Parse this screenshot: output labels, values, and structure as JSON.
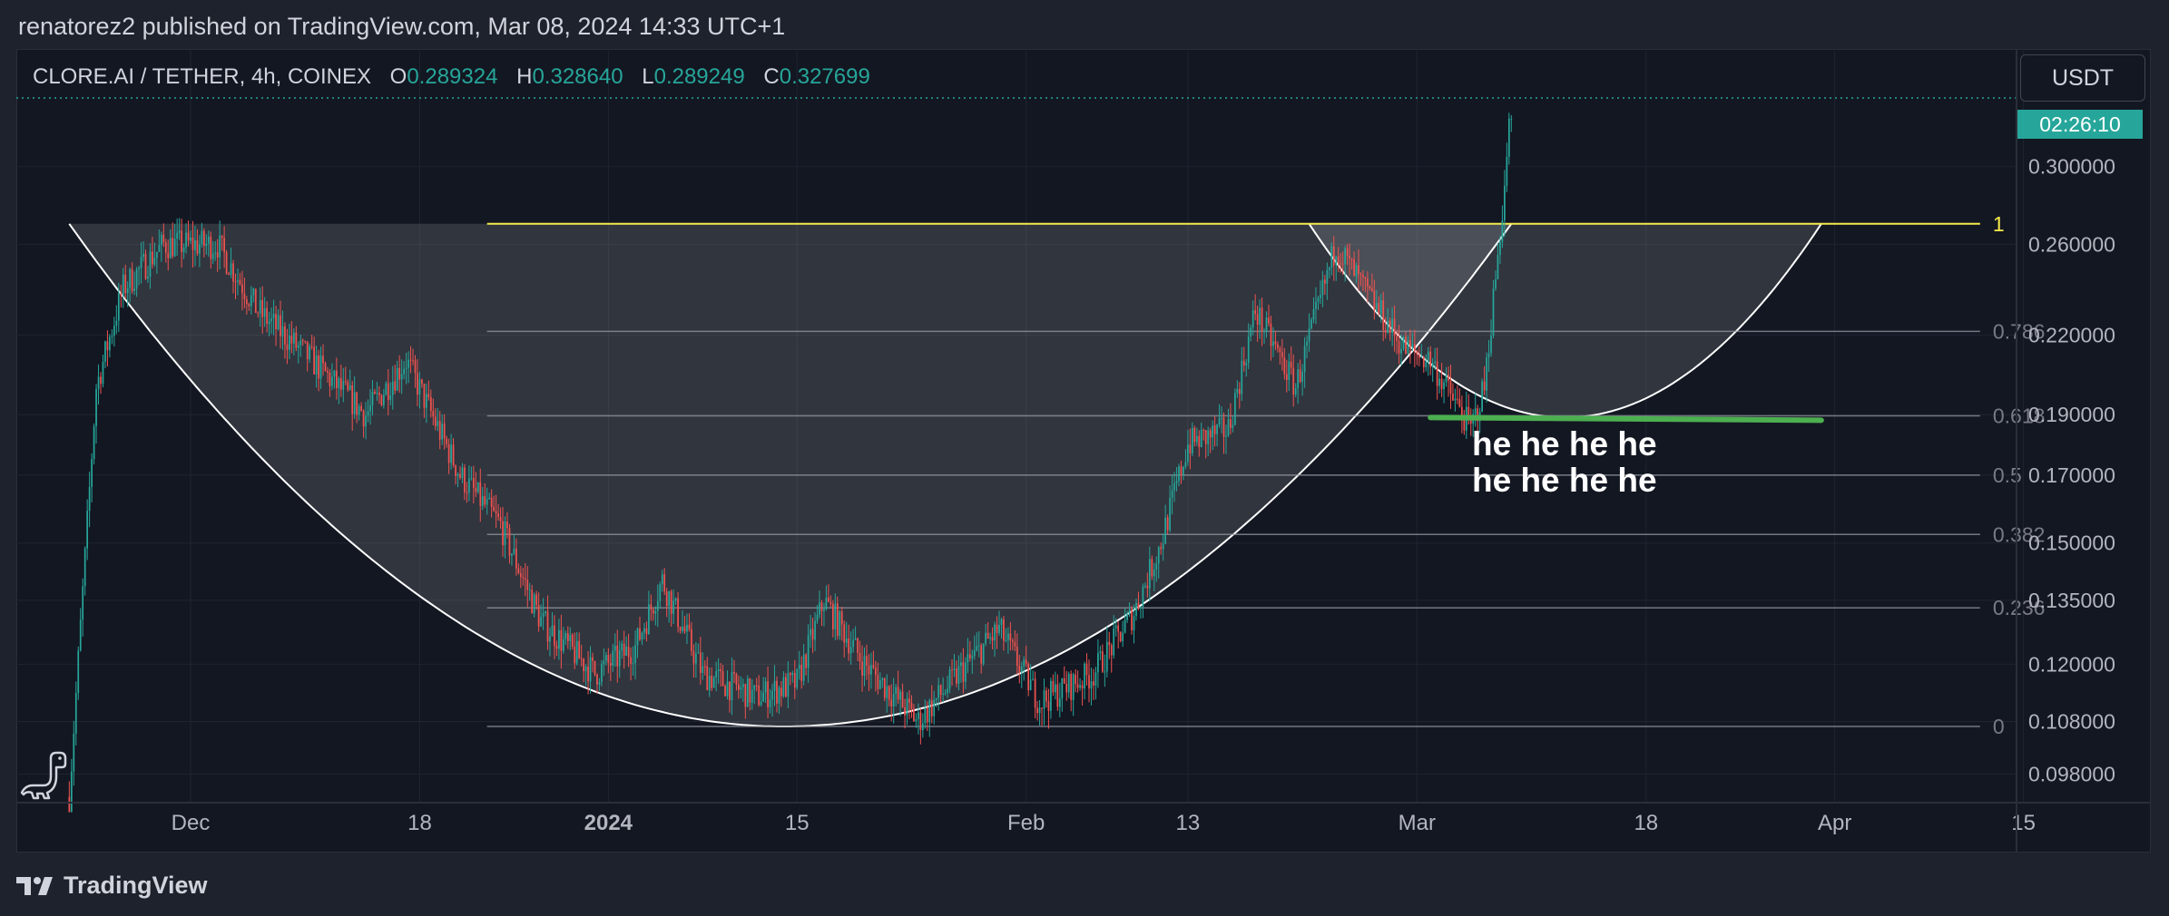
{
  "header": {
    "publish_line": "renatorez2 published on TradingView.com, Mar 08, 2024 14:33 UTC+1"
  },
  "legend": {
    "symbol": "CLORE.AI / TETHER, 4h, COINEX",
    "open_label": "O",
    "open": "0.289324",
    "high_label": "H",
    "high": "0.328640",
    "low_label": "L",
    "low": "0.289249",
    "close_label": "C",
    "close": "0.327699"
  },
  "currency": "USDT",
  "countdown": "02:26:10",
  "annotation": {
    "line1": "he he he he",
    "line2": "he he he he"
  },
  "footer": {
    "brand": "TradingView"
  },
  "colors": {
    "background": "#131722",
    "up": "#26a69a",
    "down": "#ef5350",
    "fib_level_1": "#f5ea4b",
    "support_line": "#4caf50",
    "pattern_fill": "#ffffff",
    "curve": "#ffffff"
  },
  "chart_data": {
    "type": "candlestick",
    "interval": "4h",
    "y_scale": "log",
    "ylim": [
      0.093,
      0.345
    ],
    "x_axis_labels": [
      {
        "label": "Dec",
        "date": "2023-12-01",
        "bold": false
      },
      {
        "label": "18",
        "date": "2023-12-18",
        "bold": false
      },
      {
        "label": "2024",
        "date": "2024-01-01",
        "bold": true
      },
      {
        "label": "15",
        "date": "2024-01-15",
        "bold": false
      },
      {
        "label": "Feb",
        "date": "2024-02-01",
        "bold": false
      },
      {
        "label": "13",
        "date": "2024-02-13",
        "bold": false
      },
      {
        "label": "Mar",
        "date": "2024-03-01",
        "bold": false
      },
      {
        "label": "18",
        "date": "2024-03-18",
        "bold": false
      },
      {
        "label": "Apr",
        "date": "2024-04-01",
        "bold": false
      },
      {
        "label": "15",
        "date": "2024-04-15",
        "bold": false
      }
    ],
    "y_axis_labels": [
      "0.300000",
      "0.260000",
      "0.220000",
      "0.190000",
      "0.170000",
      "0.150000",
      "0.135000",
      "0.120000",
      "0.108000",
      "0.098000"
    ],
    "fib_retracement": {
      "start_date": "2023-12-23",
      "end_date": "2024-03-31",
      "price_0": 0.107,
      "price_1": 0.27,
      "levels": [
        {
          "label": "1",
          "value": 1
        },
        {
          "label": "0.786",
          "value": 0.786
        },
        {
          "label": "0.618",
          "value": 0.618
        },
        {
          "label": "0.5",
          "value": 0.5
        },
        {
          "label": "0.382",
          "value": 0.382
        },
        {
          "label": "0.236",
          "value": 0.236
        },
        {
          "label": "0",
          "value": 0
        }
      ]
    },
    "cup_pattern": {
      "rim_left": "2023-11-22",
      "bottom": "2024-01-14",
      "rim_right": "2024-03-08",
      "rim_price": 0.27,
      "bottom_price": 0.107
    },
    "handle_pattern": {
      "rim_left": "2024-02-22",
      "bottom": "2024-03-12",
      "rim_right": "2024-03-31",
      "rim_price": 0.27,
      "bottom_price": 0.189
    },
    "support_line": {
      "start": "2024-03-02",
      "end": "2024-03-31",
      "price": 0.189
    },
    "last_price": 0.327699,
    "key_points": [
      {
        "date": "2023-11-22",
        "price": 0.094
      },
      {
        "date": "2023-11-24",
        "price": 0.2
      },
      {
        "date": "2023-11-26",
        "price": 0.24
      },
      {
        "date": "2023-11-29",
        "price": 0.26
      },
      {
        "date": "2023-12-03",
        "price": 0.26
      },
      {
        "date": "2023-12-06",
        "price": 0.23
      },
      {
        "date": "2023-12-10",
        "price": 0.21
      },
      {
        "date": "2023-12-14",
        "price": 0.19
      },
      {
        "date": "2023-12-17",
        "price": 0.21
      },
      {
        "date": "2023-12-21",
        "price": 0.17
      },
      {
        "date": "2023-12-24",
        "price": 0.155
      },
      {
        "date": "2023-12-27",
        "price": 0.13
      },
      {
        "date": "2023-12-31",
        "price": 0.118
      },
      {
        "date": "2024-01-03",
        "price": 0.124
      },
      {
        "date": "2024-01-05",
        "price": 0.14
      },
      {
        "date": "2024-01-08",
        "price": 0.118
      },
      {
        "date": "2024-01-12",
        "price": 0.113
      },
      {
        "date": "2024-01-15",
        "price": 0.116
      },
      {
        "date": "2024-01-17",
        "price": 0.135
      },
      {
        "date": "2024-01-20",
        "price": 0.12
      },
      {
        "date": "2024-01-24",
        "price": 0.108
      },
      {
        "date": "2024-01-27",
        "price": 0.118
      },
      {
        "date": "2024-01-30",
        "price": 0.128
      },
      {
        "date": "2024-02-02",
        "price": 0.112
      },
      {
        "date": "2024-02-06",
        "price": 0.118
      },
      {
        "date": "2024-02-09",
        "price": 0.132
      },
      {
        "date": "2024-02-11",
        "price": 0.15
      },
      {
        "date": "2024-02-13",
        "price": 0.18
      },
      {
        "date": "2024-02-16",
        "price": 0.185
      },
      {
        "date": "2024-02-18",
        "price": 0.23
      },
      {
        "date": "2024-02-21",
        "price": 0.2
      },
      {
        "date": "2024-02-24",
        "price": 0.26
      },
      {
        "date": "2024-02-26",
        "price": 0.24
      },
      {
        "date": "2024-02-29",
        "price": 0.215
      },
      {
        "date": "2024-03-02",
        "price": 0.21
      },
      {
        "date": "2024-03-05",
        "price": 0.185
      },
      {
        "date": "2024-03-06",
        "price": 0.2
      },
      {
        "date": "2024-03-07",
        "price": 0.255
      },
      {
        "date": "2024-03-08",
        "price": 0.3277
      }
    ]
  }
}
